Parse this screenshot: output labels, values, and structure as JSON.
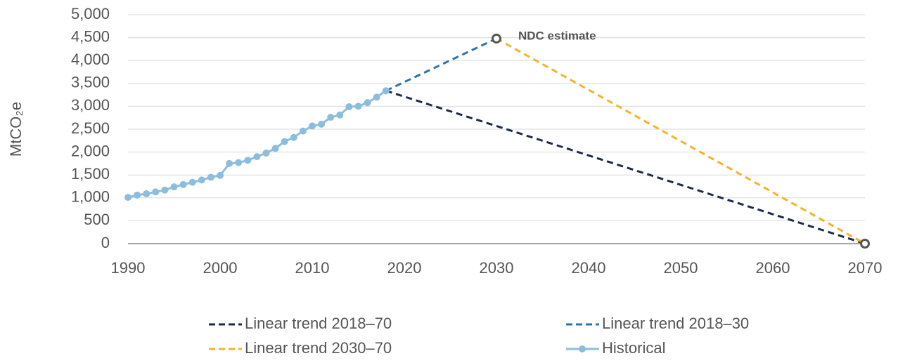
{
  "chart_data": {
    "type": "line",
    "y_label": "MtCO₂e",
    "x": [
      1990,
      1991,
      1992,
      1993,
      1994,
      1995,
      1996,
      1997,
      1998,
      1999,
      2000,
      2001,
      2002,
      2003,
      2004,
      2005,
      2006,
      2007,
      2008,
      2009,
      2010,
      2011,
      2012,
      2013,
      2014,
      2015,
      2016,
      2017,
      2018
    ],
    "series": [
      {
        "name": "Linear trend 2018–70",
        "color": "#1b2a47",
        "dash": true,
        "x": [
          2018,
          2070
        ],
        "values": [
          3340,
          0
        ]
      },
      {
        "name": "Linear trend 2018–30",
        "color": "#2f73a8",
        "dash": true,
        "x": [
          2018,
          2030
        ],
        "values": [
          3340,
          4480
        ]
      },
      {
        "name": "Linear trend 2030–70",
        "color": "#f4b428",
        "dash": true,
        "x": [
          2030,
          2070
        ],
        "values": [
          4480,
          0
        ],
        "end_marker": true
      },
      {
        "name": "Historical",
        "color": "#8dbddd",
        "dash": false,
        "markers": true,
        "values": [
          1010,
          1060,
          1090,
          1130,
          1170,
          1240,
          1290,
          1340,
          1390,
          1450,
          1490,
          1750,
          1770,
          1820,
          1900,
          1980,
          2080,
          2230,
          2320,
          2460,
          2570,
          2610,
          2760,
          2810,
          2990,
          3000,
          3080,
          3200,
          3340
        ]
      }
    ],
    "annotation": {
      "text": "NDC estimate",
      "x": 2030,
      "y": 4480
    },
    "xlim": [
      1990,
      2070
    ],
    "xticks": [
      1990,
      2000,
      2010,
      2020,
      2030,
      2040,
      2050,
      2060,
      2070
    ],
    "ylim": [
      0,
      5000
    ],
    "yticks": [
      0,
      {
        "value": 500,
        "label": "500"
      },
      {
        "value": 1000,
        "label": "1,000"
      },
      {
        "value": 1500,
        "label": "1,500"
      },
      {
        "value": 2000,
        "label": "2,000"
      },
      {
        "value": 2500,
        "label": "2,500"
      },
      {
        "value": 3000,
        "label": "3,000"
      },
      {
        "value": 3500,
        "label": "3,500"
      },
      {
        "value": 4000,
        "label": "4,000"
      },
      {
        "value": 4500,
        "label": "4,500"
      },
      {
        "value": 5000,
        "label": "5,000"
      }
    ],
    "grid": true,
    "legend": "bottom"
  }
}
